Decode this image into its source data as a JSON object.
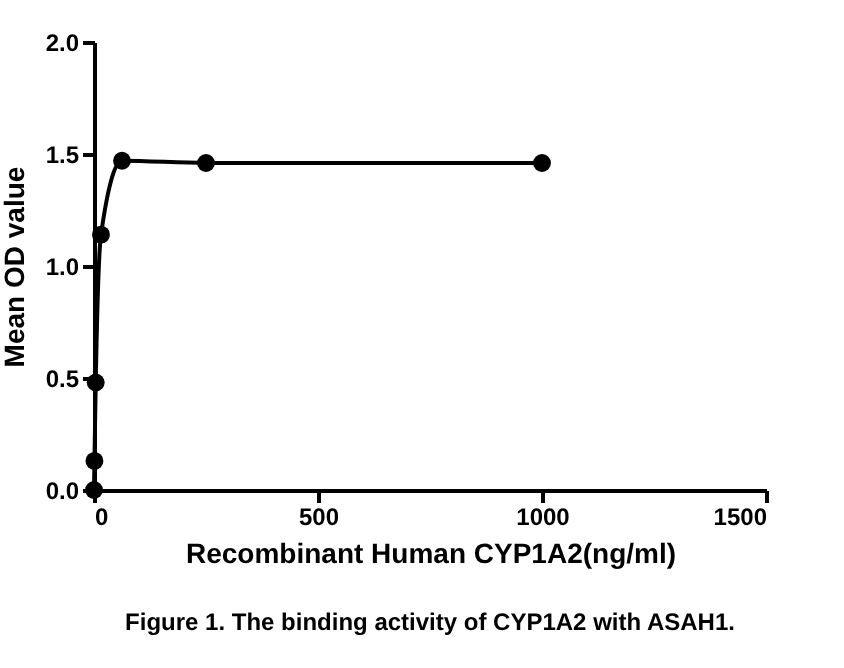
{
  "chart_data": {
    "type": "line",
    "title": "Figure 1. The binding activity of CYP1A2 with ASAH1.",
    "xlabel": "Recombinant  Human CYP1A2(ng/ml)",
    "ylabel": "Mean OD value",
    "x": [
      0,
      0.98,
      3.9,
      15.6,
      62.5,
      250,
      1000
    ],
    "series": [
      {
        "color": "#000000",
        "values": [
          0.0,
          0.13,
          0.48,
          1.14,
          1.47,
          1.46,
          1.46
        ]
      }
    ],
    "xlim": [
      0,
      1500
    ],
    "xticks": [
      0,
      500,
      1000,
      1500
    ],
    "ylim": [
      0,
      2.0
    ],
    "yticks": [
      {
        "value": 0,
        "label": "0.0"
      },
      {
        "value": 0.5,
        "label": "0.5"
      },
      {
        "value": 1,
        "label": "1.0"
      },
      {
        "value": 1.5,
        "label": "1.5"
      },
      {
        "value": 2,
        "label": "2.0"
      }
    ],
    "grid": false,
    "marker": "circle",
    "line_style": "solid"
  }
}
